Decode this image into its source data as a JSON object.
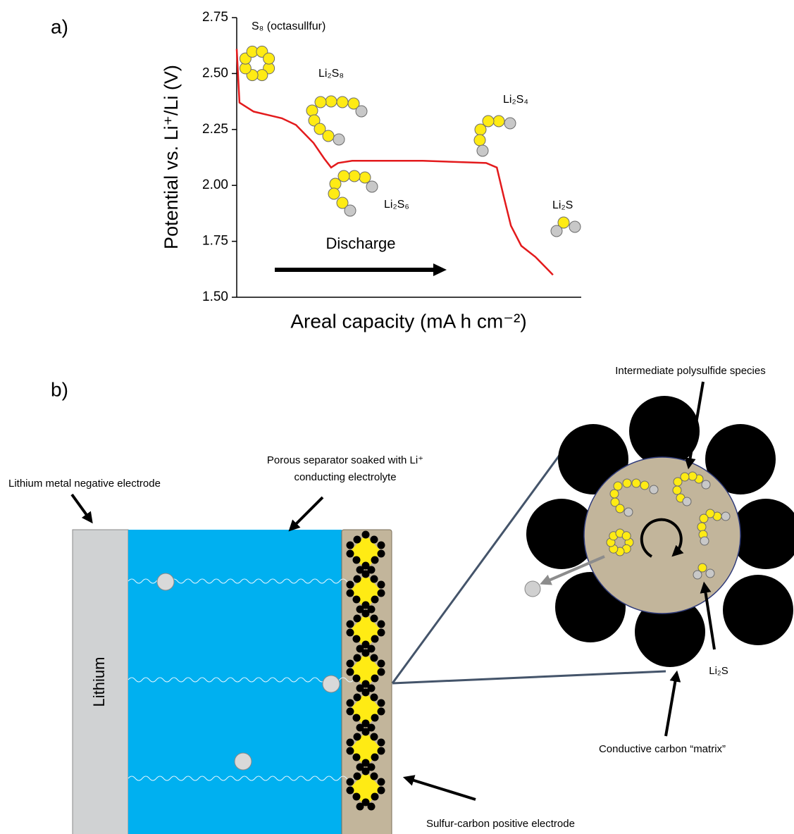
{
  "panel_a": {
    "label": "a)"
  },
  "chart_data": {
    "type": "line",
    "ylabel": "Potential vs. Li⁺/Li (V)",
    "xlabel": "Areal capacity (mA h cm⁻²)",
    "x": [
      0,
      0.008,
      0.049,
      0.131,
      0.172,
      0.223,
      0.254,
      0.274,
      0.294,
      0.335,
      0.54,
      0.724,
      0.755,
      0.775,
      0.796,
      0.826,
      0.867,
      0.918
    ],
    "series": [
      {
        "color": "#e31a1c",
        "values": [
          2.61,
          2.37,
          2.33,
          2.3,
          2.27,
          2.19,
          2.12,
          2.08,
          2.1,
          2.11,
          2.11,
          2.1,
          2.08,
          1.95,
          1.82,
          1.73,
          1.68,
          1.6
        ]
      }
    ],
    "xlim": [
      0,
      1
    ],
    "ylim": [
      1.5,
      2.75
    ],
    "yticks": [
      {
        "value": 1.5,
        "label": "1.50"
      },
      1.75,
      {
        "value": 2,
        "label": "2.00"
      },
      2.25,
      {
        "value": 2.5,
        "label": "2.50"
      },
      2.75
    ],
    "annotations": [
      "S₈ (octasullfur)",
      "Li₂S₈",
      "Li₂S₆",
      "Li₂S₄",
      "Li₂S"
    ],
    "arrow_label": "Discharge"
  },
  "panel_b": {
    "label": "b)",
    "lithium_label": "Lithium metal negative electrode",
    "separator_label": [
      "Porous separator soaked with Li⁺",
      "conducting electrolyte"
    ],
    "lithium": "Lithium",
    "cathode_label": "Sulfur-carbon positive electrode",
    "polysulfide_label": "Intermediate polysulfide species",
    "li2s_label": "Li₂S",
    "carbon_label": "Conductive carbon “matrix”"
  }
}
